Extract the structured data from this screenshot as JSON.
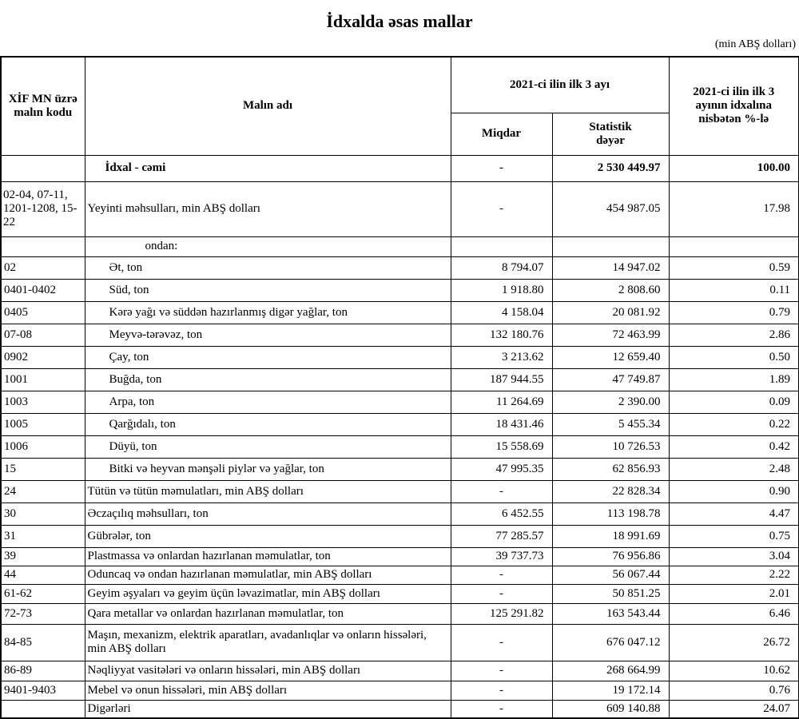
{
  "title": "İdxalda əsas mallar",
  "unit": "(min ABŞ dolları)",
  "header": {
    "code": "XİF MN üzrə malın kodu",
    "name": "Malın adı",
    "period": "2021-ci ilin ilk 3 ayı",
    "quantity": "Miqdar",
    "value": "Statistik dəyər",
    "share": "2021-ci ilin ilk 3 ayının idxalına nisbətən %-lə"
  },
  "total": {
    "name": "İdxal - cəmi",
    "quantity": "-",
    "value": "2 530 449.97",
    "share": "100.00"
  },
  "food": {
    "code": "02-04, 07-11, 1201-1208, 15-22",
    "name": "Yeyinti məhsulları, min ABŞ dolları",
    "quantity": "-",
    "value": "454 987.05",
    "share": "17.98",
    "note": "ondan:",
    "items": [
      [
        "02",
        "Ət, ton",
        "8 794.07",
        "14 947.02",
        "0.59"
      ],
      [
        "0401-0402",
        "Süd, ton",
        "1 918.80",
        "2 808.60",
        "0.11"
      ],
      [
        "0405",
        "Kərə yağı və süddən hazırlanmış digər yağlar, ton",
        "4 158.04",
        "20 081.92",
        "0.79"
      ],
      [
        "07-08",
        "Meyvə-tərəvəz, ton",
        "132 180.76",
        "72 463.99",
        "2.86"
      ],
      [
        "0902",
        "Çay, ton",
        "3 213.62",
        "12 659.40",
        "0.50"
      ],
      [
        "1001",
        "Buğda, ton",
        "187 944.55",
        "47 749.87",
        "1.89"
      ],
      [
        "1003",
        "Arpa, ton",
        "11 264.69",
        "2 390.00",
        "0.09"
      ],
      [
        "1005",
        "Qarğıdalı, ton",
        "18 431.46",
        "5 455.34",
        "0.22"
      ],
      [
        "1006",
        "Düyü, ton",
        "15 558.69",
        "10 726.53",
        "0.42"
      ],
      [
        "15",
        "Bitki və heyvan mənşəli piylər və yağlar, ton",
        "47 995.35",
        "62 856.93",
        "2.48"
      ]
    ]
  },
  "rows": [
    [
      "24",
      "Tütün və tütün məmulatları, min ABŞ dolları",
      "-",
      "22 828.34",
      "0.90"
    ],
    [
      "30",
      "Əczaçılıq məhsulları, ton",
      "6 452.55",
      "113 198.78",
      "4.47"
    ],
    [
      "31",
      "Gübrələr, ton",
      "77 285.57",
      "18 991.69",
      "0.75"
    ],
    [
      "39",
      "Plastmassa və onlardan hazırlanan məmulatlar, ton",
      "39 737.73",
      "76 956.86",
      "3.04"
    ],
    [
      "44",
      "Oduncaq və ondan hazırlanan məmulatlar, min ABŞ dolları",
      "-",
      "56 067.44",
      "2.22"
    ],
    [
      "61-62",
      "Geyim əşyaları və geyim üçün ləvazimatlar, min ABŞ dolları",
      "-",
      "50 851.25",
      "2.01"
    ],
    [
      "72-73",
      "Qara metallar və onlardan hazırlanan məmulatlar, ton",
      "125 291.82",
      "163 543.44",
      "6.46"
    ],
    [
      "84-85",
      "Maşın, mexanizm, elektrik aparatları, avadanlıqlar və onların hissələri, min ABŞ dolları",
      "-",
      "676 047.12",
      "26.72"
    ],
    [
      "86-89",
      "Nəqliyyat vasitələri və onların hissələri, min ABŞ dolları",
      "-",
      "268 664.99",
      "10.62"
    ],
    [
      "9401-9403",
      "Mebel və onun hissələri, min ABŞ dolları",
      "-",
      "19 172.14",
      "0.76"
    ],
    [
      "",
      "Digərləri",
      "-",
      "609 140.88",
      "24.07"
    ]
  ]
}
